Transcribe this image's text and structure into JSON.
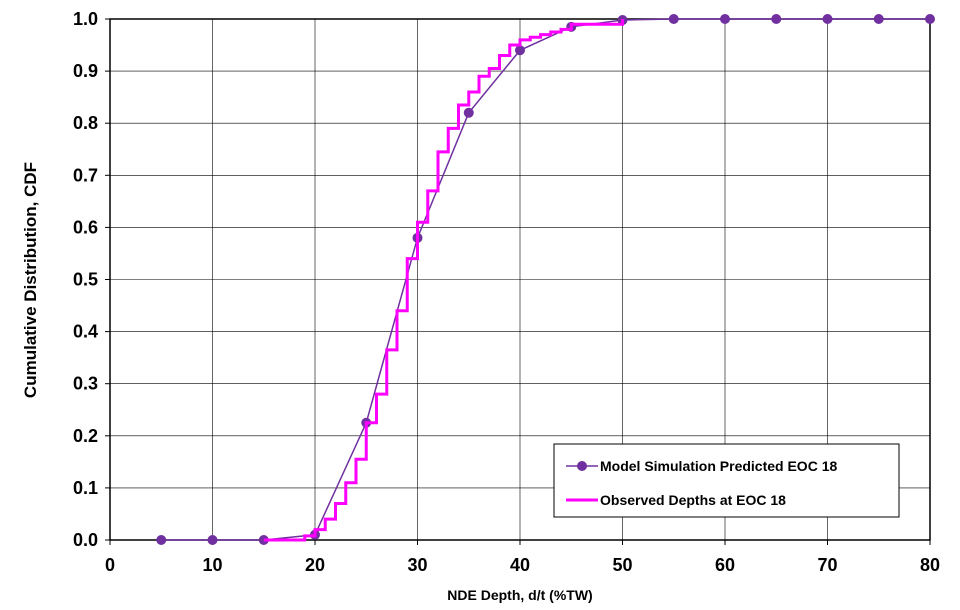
{
  "chart_data": {
    "type": "line",
    "title": "",
    "xlabel": "NDE Depth, d/t  (%TW)",
    "ylabel": "Cumulative Distribution, CDF",
    "xlim": [
      0,
      80
    ],
    "ylim": [
      0,
      1
    ],
    "x_ticks": [
      "0",
      "10",
      "20",
      "30",
      "40",
      "50",
      "60",
      "70",
      "80"
    ],
    "y_ticks": [
      "0.0",
      "0.1",
      "0.2",
      "0.3",
      "0.4",
      "0.5",
      "0.6",
      "0.7",
      "0.8",
      "0.9",
      "1.0"
    ],
    "grid": true,
    "legend_position": "bottom-right",
    "series": [
      {
        "name": "Model Simulation Predicted EOC 18",
        "color": "#7030a0",
        "style": "line-markers",
        "x": [
          5,
          10,
          15,
          20,
          25,
          30,
          35,
          40,
          45,
          50,
          55,
          60,
          65,
          70,
          75,
          80
        ],
        "y": [
          0.0,
          0.0,
          0.0,
          0.01,
          0.225,
          0.58,
          0.82,
          0.94,
          0.985,
          0.998,
          1.0,
          1.0,
          1.0,
          1.0,
          1.0,
          1.0
        ]
      },
      {
        "name": "Observed Depths at EOC 18",
        "color": "#ff00ff",
        "style": "step",
        "x": [
          15,
          19,
          20,
          21,
          22,
          23,
          24,
          25,
          26,
          27,
          28,
          29,
          30,
          31,
          32,
          33,
          34,
          35,
          36,
          37,
          38,
          39,
          40,
          41,
          42,
          43,
          44,
          45,
          50
        ],
        "y": [
          0.0,
          0.008,
          0.02,
          0.04,
          0.07,
          0.11,
          0.155,
          0.225,
          0.28,
          0.365,
          0.44,
          0.54,
          0.61,
          0.67,
          0.745,
          0.79,
          0.835,
          0.86,
          0.89,
          0.905,
          0.93,
          0.95,
          0.96,
          0.965,
          0.97,
          0.975,
          0.98,
          0.99,
          1.0
        ]
      }
    ]
  }
}
